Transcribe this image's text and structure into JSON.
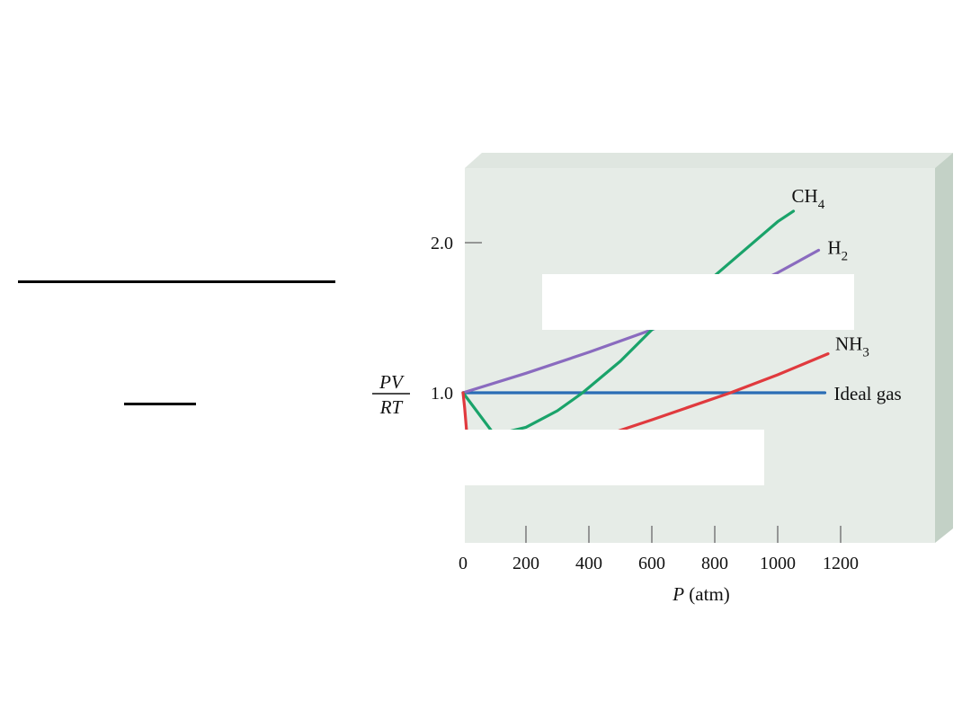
{
  "chart_data": {
    "type": "line",
    "xlabel_symbol": "P",
    "xlabel_unit": "(atm)",
    "ylabel_numerator": "PV",
    "ylabel_denominator": "RT",
    "xlim": [
      0,
      1200
    ],
    "ylim": [
      0.5,
      2.3
    ],
    "x_ticks": [
      0,
      200,
      400,
      600,
      800,
      1000,
      1200
    ],
    "x_tick_labels": [
      "0",
      "200",
      "400",
      "600",
      "800",
      "1000",
      "1200"
    ],
    "y_ticks": [
      1.0,
      2.0
    ],
    "y_tick_labels": [
      "1.0",
      "2.0"
    ],
    "series": [
      {
        "name": "Ideal gas",
        "color": "#2a6db5",
        "x": [
          0,
          1150
        ],
        "y": [
          1.0,
          1.0
        ]
      },
      {
        "name": "H",
        "subscript": "2",
        "color": "#8a6bbf",
        "x": [
          0,
          200,
          400,
          600,
          800,
          1000,
          1130
        ],
        "y": [
          1.0,
          1.13,
          1.27,
          1.42,
          1.6,
          1.8,
          1.95
        ]
      },
      {
        "name": "CH",
        "subscript": "4",
        "color": "#1aa36a",
        "x": [
          0,
          100,
          200,
          300,
          380,
          500,
          600,
          800,
          1000,
          1050
        ],
        "y": [
          1.0,
          0.72,
          0.77,
          0.88,
          1.0,
          1.21,
          1.42,
          1.78,
          2.14,
          2.21
        ]
      },
      {
        "name": "NH",
        "subscript": "3",
        "color": "#e03a3e",
        "x": [
          0,
          5,
          15,
          30,
          60,
          100,
          200,
          400,
          600,
          850,
          1000,
          1160
        ],
        "y": [
          1.0,
          0.9,
          0.65,
          0.5,
          0.46,
          0.49,
          0.56,
          0.68,
          0.82,
          1.0,
          1.12,
          1.26
        ]
      }
    ]
  }
}
